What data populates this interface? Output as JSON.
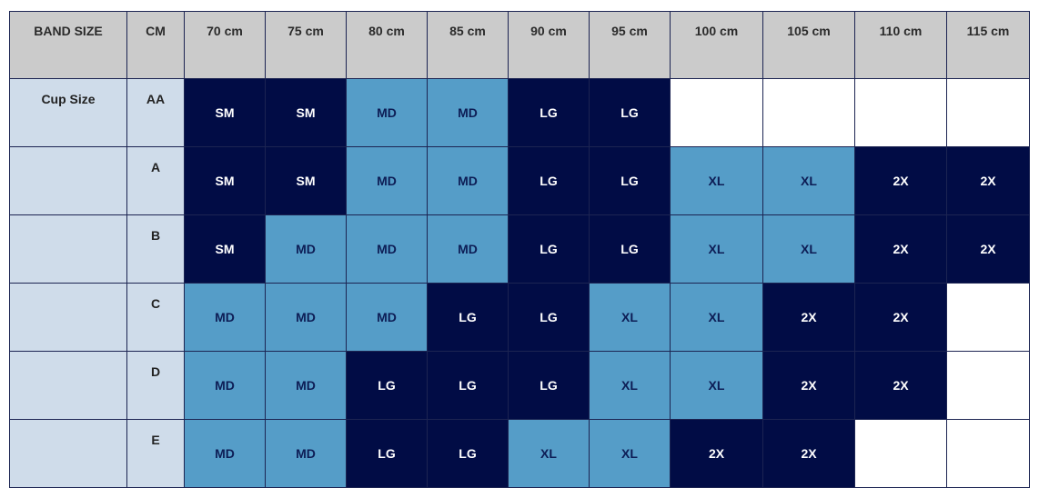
{
  "headers": [
    "BAND SIZE",
    "CM",
    "70 cm",
    "75 cm",
    "80 cm",
    "85 cm",
    "90 cm",
    "95 cm",
    "100 cm",
    "105 cm",
    "110 cm",
    "115 cm"
  ],
  "label": "Cup Size",
  "rows": [
    {
      "cup": "AA",
      "sizes": [
        "SM",
        "SM",
        "MD",
        "MD",
        "LG",
        "LG",
        "",
        "",
        "",
        ""
      ]
    },
    {
      "cup": "A",
      "sizes": [
        "SM",
        "SM",
        "MD",
        "MD",
        "LG",
        "LG",
        "XL",
        "XL",
        "2X",
        "2X"
      ]
    },
    {
      "cup": "B",
      "sizes": [
        "SM",
        "MD",
        "MD",
        "MD",
        "LG",
        "LG",
        "XL",
        "XL",
        "2X",
        "2X"
      ]
    },
    {
      "cup": "C",
      "sizes": [
        "MD",
        "MD",
        "MD",
        "LG",
        "LG",
        "XL",
        "XL",
        "2X",
        "2X",
        ""
      ]
    },
    {
      "cup": "D",
      "sizes": [
        "MD",
        "MD",
        "LG",
        "LG",
        "LG",
        "XL",
        "XL",
        "2X",
        "2X",
        ""
      ]
    },
    {
      "cup": "E",
      "sizes": [
        "MD",
        "MD",
        "LG",
        "LG",
        "XL",
        "XL",
        "2X",
        "2X",
        "",
        ""
      ]
    }
  ],
  "colors": {
    "dark": "#010c45",
    "light": "#559dc8",
    "label_bg": "#cfdcea",
    "header_bg": "#cbcbcb"
  }
}
